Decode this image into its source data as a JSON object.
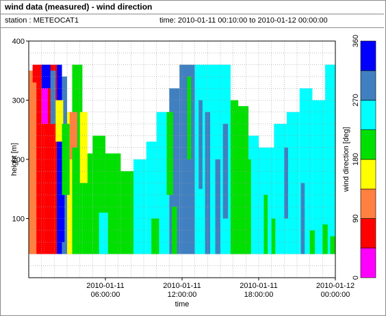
{
  "header": {
    "title": "wind data (measured) - wind direction",
    "station": "station : METEOCAT1",
    "time_range": "time: 2010-01-11 00:10:00 to 2010-01-12 00:00:00"
  },
  "chart_data": {
    "type": "heatmap",
    "xlabel": "time",
    "ylabel": "height [m]",
    "colorbar_label": "wind direction [deg]",
    "xlim_hours": [
      0,
      24
    ],
    "ylim": [
      0,
      400
    ],
    "x_ticks": [
      {
        "hour": 6,
        "line1": "2010-01-11",
        "line2": "06:00:00"
      },
      {
        "hour": 12,
        "line1": "2010-01-11",
        "line2": "12:00:00"
      },
      {
        "hour": 18,
        "line1": "2010-01-11",
        "line2": "18:00:00"
      },
      {
        "hour": 24,
        "line1": "2010-01-12",
        "line2": "00:00:00"
      }
    ],
    "y_ticks": [
      "400",
      "300",
      "200",
      "100"
    ],
    "y_tick_values": [
      400,
      300,
      200,
      100
    ],
    "colorbar_ticks": [
      "360",
      "270",
      "180",
      "90",
      "0"
    ],
    "colorbar_tick_values": [
      360,
      270,
      180,
      90,
      0
    ],
    "grid": true,
    "colorbar_bins": [
      {
        "min": 0,
        "max": 45,
        "color": "#ff00ff"
      },
      {
        "min": 45,
        "max": 90,
        "color": "#ff0000"
      },
      {
        "min": 90,
        "max": 135,
        "color": "#ff8040"
      },
      {
        "min": 135,
        "max": 180,
        "color": "#ffff00"
      },
      {
        "min": 180,
        "max": 225,
        "color": "#00e000"
      },
      {
        "min": 225,
        "max": 270,
        "color": "#00ffff"
      },
      {
        "min": 270,
        "max": 315,
        "color": "#4080c0"
      },
      {
        "min": 315,
        "max": 360,
        "color": "#0000ff"
      }
    ],
    "data_start_height": 40,
    "segments": [
      {
        "t0": 0.0,
        "t1": 0.3,
        "top": 350,
        "color": "#ff8040"
      },
      {
        "t0": 0.3,
        "t1": 1.2,
        "top": 360,
        "color": "#ff0000"
      },
      {
        "t0": 1.2,
        "t1": 2.2,
        "top": 360,
        "color": "#ff0000"
      },
      {
        "t0": 2.2,
        "t1": 2.6,
        "top": 360,
        "color": "#0000ff"
      },
      {
        "t0": 2.6,
        "t1": 3.0,
        "top": 340,
        "color": "#4080c0"
      },
      {
        "t0": 3.0,
        "t1": 3.4,
        "top": 280,
        "color": "#ffff00"
      },
      {
        "t0": 3.4,
        "t1": 4.2,
        "top": 360,
        "color": "#00e000"
      },
      {
        "t0": 4.2,
        "t1": 5.0,
        "top": 210,
        "color": "#00e000"
      },
      {
        "t0": 5.0,
        "t1": 6.0,
        "top": 240,
        "color": "#00e000"
      },
      {
        "t0": 6.0,
        "t1": 7.2,
        "top": 210,
        "color": "#00e000"
      },
      {
        "t0": 7.2,
        "t1": 8.2,
        "top": 180,
        "color": "#00e000"
      },
      {
        "t0": 8.2,
        "t1": 9.2,
        "top": 200,
        "color": "#00ffff"
      },
      {
        "t0": 9.2,
        "t1": 10.0,
        "top": 230,
        "color": "#00ffff"
      },
      {
        "t0": 10.0,
        "t1": 11.0,
        "top": 280,
        "color": "#00ffff"
      },
      {
        "t0": 11.0,
        "t1": 11.8,
        "top": 320,
        "color": "#4080c0"
      },
      {
        "t0": 11.8,
        "t1": 13.0,
        "top": 360,
        "color": "#4080c0"
      },
      {
        "t0": 13.0,
        "t1": 14.0,
        "top": 360,
        "color": "#00ffff"
      },
      {
        "t0": 14.0,
        "t1": 15.0,
        "top": 360,
        "color": "#00ffff"
      },
      {
        "t0": 15.0,
        "t1": 15.8,
        "top": 360,
        "color": "#00ffff"
      },
      {
        "t0": 15.8,
        "t1": 17.2,
        "top": 290,
        "color": "#00e000"
      },
      {
        "t0": 17.2,
        "t1": 18.0,
        "top": 240,
        "color": "#00ffff"
      },
      {
        "t0": 18.0,
        "t1": 19.2,
        "top": 220,
        "color": "#00ffff"
      },
      {
        "t0": 19.2,
        "t1": 20.2,
        "top": 260,
        "color": "#00ffff"
      },
      {
        "t0": 20.2,
        "t1": 21.2,
        "top": 280,
        "color": "#00ffff"
      },
      {
        "t0": 21.2,
        "t1": 22.2,
        "top": 320,
        "color": "#00ffff"
      },
      {
        "t0": 22.2,
        "t1": 23.2,
        "top": 300,
        "color": "#00ffff"
      },
      {
        "t0": 23.2,
        "t1": 24.0,
        "top": 360,
        "color": "#00ffff"
      }
    ],
    "overlays": [
      {
        "t0": 0.2,
        "t1": 0.6,
        "bottom": 40,
        "top": 330,
        "color": "#ff8040"
      },
      {
        "t0": 1.0,
        "t1": 1.5,
        "bottom": 260,
        "top": 320,
        "color": "#ff00ff"
      },
      {
        "t0": 1.0,
        "t1": 1.7,
        "bottom": 320,
        "top": 360,
        "color": "#0000ff"
      },
      {
        "t0": 1.7,
        "t1": 2.1,
        "bottom": 260,
        "top": 350,
        "color": "#4080c0"
      },
      {
        "t0": 2.1,
        "t1": 2.7,
        "bottom": 230,
        "top": 300,
        "color": "#ffff00"
      },
      {
        "t0": 2.2,
        "t1": 2.8,
        "bottom": 60,
        "top": 180,
        "color": "#0000ff"
      },
      {
        "t0": 2.6,
        "t1": 3.2,
        "bottom": 140,
        "top": 260,
        "color": "#00e000"
      },
      {
        "t0": 3.2,
        "t1": 3.8,
        "bottom": 200,
        "top": 280,
        "color": "#ff8040"
      },
      {
        "t0": 3.4,
        "t1": 4.0,
        "bottom": 140,
        "top": 220,
        "color": "#00e000"
      },
      {
        "t0": 4.0,
        "t1": 4.6,
        "bottom": 160,
        "top": 280,
        "color": "#ffff00"
      },
      {
        "t0": 5.5,
        "t1": 6.2,
        "bottom": 40,
        "top": 110,
        "color": "#00ffff"
      },
      {
        "t0": 9.6,
        "t1": 10.2,
        "bottom": 40,
        "top": 100,
        "color": "#00e000"
      },
      {
        "t0": 10.8,
        "t1": 11.3,
        "bottom": 140,
        "top": 280,
        "color": "#00e000"
      },
      {
        "t0": 11.2,
        "t1": 11.6,
        "bottom": 40,
        "top": 120,
        "color": "#00e000"
      },
      {
        "t0": 12.4,
        "t1": 12.7,
        "bottom": 200,
        "top": 340,
        "color": "#00e000"
      },
      {
        "t0": 13.3,
        "t1": 13.6,
        "bottom": 150,
        "top": 300,
        "color": "#4080c0"
      },
      {
        "t0": 13.8,
        "t1": 14.2,
        "bottom": 40,
        "top": 280,
        "color": "#4080c0"
      },
      {
        "t0": 14.6,
        "t1": 15.0,
        "bottom": 40,
        "top": 200,
        "color": "#4080c0"
      },
      {
        "t0": 15.2,
        "t1": 15.6,
        "bottom": 100,
        "top": 260,
        "color": "#4080c0"
      },
      {
        "t0": 15.8,
        "t1": 16.4,
        "bottom": 40,
        "top": 300,
        "color": "#00e000"
      },
      {
        "t0": 16.4,
        "t1": 17.0,
        "bottom": 40,
        "top": 260,
        "color": "#00e000"
      },
      {
        "t0": 17.0,
        "t1": 17.4,
        "bottom": 40,
        "top": 200,
        "color": "#00e000"
      },
      {
        "t0": 18.4,
        "t1": 18.7,
        "bottom": 40,
        "top": 140,
        "color": "#00e000"
      },
      {
        "t0": 19.0,
        "t1": 19.3,
        "bottom": 40,
        "top": 100,
        "color": "#00e000"
      },
      {
        "t0": 20.0,
        "t1": 20.3,
        "bottom": 100,
        "top": 220,
        "color": "#4080c0"
      },
      {
        "t0": 21.3,
        "t1": 21.6,
        "bottom": 40,
        "top": 160,
        "color": "#4080c0"
      },
      {
        "t0": 22.0,
        "t1": 22.4,
        "bottom": 40,
        "top": 80,
        "color": "#00e000"
      },
      {
        "t0": 23.0,
        "t1": 23.4,
        "bottom": 40,
        "top": 90,
        "color": "#00e000"
      },
      {
        "t0": 23.6,
        "t1": 24.0,
        "bottom": 40,
        "top": 70,
        "color": "#00e000"
      }
    ]
  }
}
